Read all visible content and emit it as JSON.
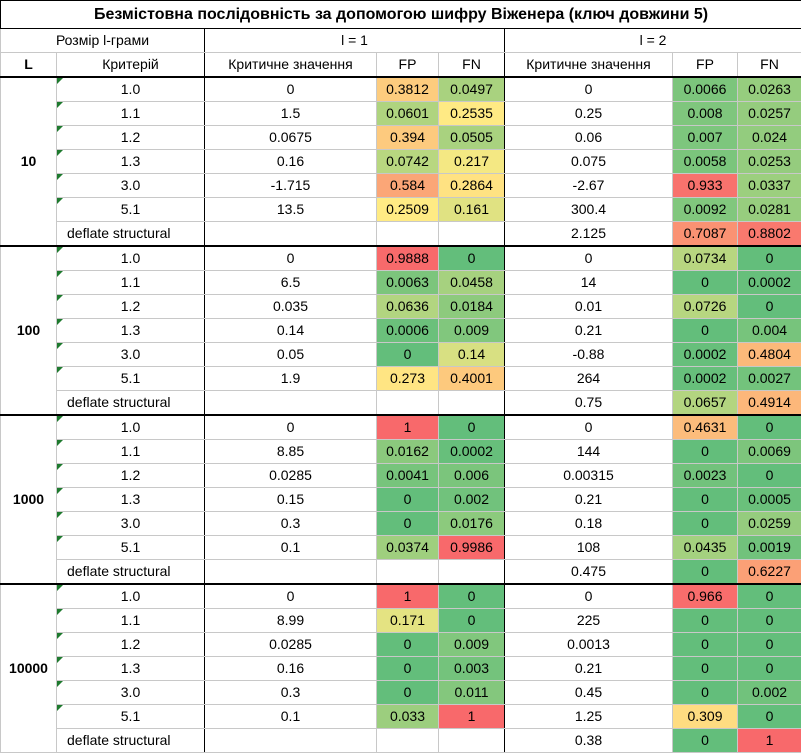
{
  "title": "Безмістовна послідовність за допомогою шифру Віженера (ключ довжини 5)",
  "header1": {
    "ngram_label": "Розмір l-грами",
    "l1": "l = 1",
    "l2": "l = 2"
  },
  "header2": {
    "L": "L",
    "criterion": "Критерій",
    "crit_value": "Критичне значення",
    "fp": "FP",
    "fn": "FN"
  },
  "groups": [
    {
      "L": "10",
      "rows": [
        {
          "crit": "1.0",
          "l1": {
            "cv": "0",
            "fp": "0.3812",
            "fn": "0.0497"
          },
          "l2": {
            "cv": "0",
            "fp": "0.0066",
            "fn": "0.0263"
          }
        },
        {
          "crit": "1.1",
          "l1": {
            "cv": "1.5",
            "fp": "0.0601",
            "fn": "0.2535"
          },
          "l2": {
            "cv": "0.25",
            "fp": "0.008",
            "fn": "0.0257"
          }
        },
        {
          "crit": "1.2",
          "l1": {
            "cv": "0.0675",
            "fp": "0.394",
            "fn": "0.0505"
          },
          "l2": {
            "cv": "0.06",
            "fp": "0.007",
            "fn": "0.024"
          }
        },
        {
          "crit": "1.3",
          "l1": {
            "cv": "0.16",
            "fp": "0.0742",
            "fn": "0.217"
          },
          "l2": {
            "cv": "0.075",
            "fp": "0.0058",
            "fn": "0.0253"
          }
        },
        {
          "crit": "3.0",
          "l1": {
            "cv": "-1.715",
            "fp": "0.584",
            "fn": "0.2864"
          },
          "l2": {
            "cv": "-2.67",
            "fp": "0.933",
            "fn": "0.0337"
          }
        },
        {
          "crit": "5.1",
          "l1": {
            "cv": "13.5",
            "fp": "0.2509",
            "fn": "0.161"
          },
          "l2": {
            "cv": "300.4",
            "fp": "0.0092",
            "fn": "0.0281"
          }
        },
        {
          "crit": "deflate structural",
          "l1": {
            "cv": "",
            "fp": "",
            "fn": ""
          },
          "l2": {
            "cv": "2.125",
            "fp": "0.7087",
            "fn": "0.8802"
          }
        }
      ]
    },
    {
      "L": "100",
      "rows": [
        {
          "crit": "1.0",
          "l1": {
            "cv": "0",
            "fp": "0.9888",
            "fn": "0"
          },
          "l2": {
            "cv": "0",
            "fp": "0.0734",
            "fn": "0"
          }
        },
        {
          "crit": "1.1",
          "l1": {
            "cv": "6.5",
            "fp": "0.0063",
            "fn": "0.0458"
          },
          "l2": {
            "cv": "14",
            "fp": "0",
            "fn": "0.0002"
          }
        },
        {
          "crit": "1.2",
          "l1": {
            "cv": "0.035",
            "fp": "0.0636",
            "fn": "0.0184"
          },
          "l2": {
            "cv": "0.01",
            "fp": "0.0726",
            "fn": "0"
          }
        },
        {
          "crit": "1.3",
          "l1": {
            "cv": "0.14",
            "fp": "0.0006",
            "fn": "0.009"
          },
          "l2": {
            "cv": "0.21",
            "fp": "0",
            "fn": "0.004"
          }
        },
        {
          "crit": "3.0",
          "l1": {
            "cv": "0.05",
            "fp": "0",
            "fn": "0.14"
          },
          "l2": {
            "cv": "-0.88",
            "fp": "0.0002",
            "fn": "0.4804"
          }
        },
        {
          "crit": "5.1",
          "l1": {
            "cv": "1.9",
            "fp": "0.273",
            "fn": "0.4001"
          },
          "l2": {
            "cv": "264",
            "fp": "0.0002",
            "fn": "0.0027"
          }
        },
        {
          "crit": "deflate structural",
          "l1": {
            "cv": "",
            "fp": "",
            "fn": ""
          },
          "l2": {
            "cv": "0.75",
            "fp": "0.0657",
            "fn": "0.4914"
          }
        }
      ]
    },
    {
      "L": "1000",
      "rows": [
        {
          "crit": "1.0",
          "l1": {
            "cv": "0",
            "fp": "1",
            "fn": "0"
          },
          "l2": {
            "cv": "0",
            "fp": "0.4631",
            "fn": "0"
          }
        },
        {
          "crit": "1.1",
          "l1": {
            "cv": "8.85",
            "fp": "0.0162",
            "fn": "0.0002"
          },
          "l2": {
            "cv": "144",
            "fp": "0",
            "fn": "0.0069"
          }
        },
        {
          "crit": "1.2",
          "l1": {
            "cv": "0.0285",
            "fp": "0.0041",
            "fn": "0.006"
          },
          "l2": {
            "cv": "0.00315",
            "fp": "0.0023",
            "fn": "0"
          }
        },
        {
          "crit": "1.3",
          "l1": {
            "cv": "0.15",
            "fp": "0",
            "fn": "0.002"
          },
          "l2": {
            "cv": "0.21",
            "fp": "0",
            "fn": "0.0005"
          }
        },
        {
          "crit": "3.0",
          "l1": {
            "cv": "0.3",
            "fp": "0",
            "fn": "0.0176"
          },
          "l2": {
            "cv": "0.18",
            "fp": "0",
            "fn": "0.0259"
          }
        },
        {
          "crit": "5.1",
          "l1": {
            "cv": "0.1",
            "fp": "0.0374",
            "fn": "0.9986"
          },
          "l2": {
            "cv": "108",
            "fp": "0.0435",
            "fn": "0.0019"
          }
        },
        {
          "crit": "deflate structural",
          "l1": {
            "cv": "",
            "fp": "",
            "fn": ""
          },
          "l2": {
            "cv": "0.475",
            "fp": "0",
            "fn": "0.6227"
          }
        }
      ]
    },
    {
      "L": "10000",
      "rows": [
        {
          "crit": "1.0",
          "l1": {
            "cv": "0",
            "fp": "1",
            "fn": "0"
          },
          "l2": {
            "cv": "0",
            "fp": "0.966",
            "fn": "0"
          }
        },
        {
          "crit": "1.1",
          "l1": {
            "cv": "8.99",
            "fp": "0.171",
            "fn": "0"
          },
          "l2": {
            "cv": "225",
            "fp": "0",
            "fn": "0"
          }
        },
        {
          "crit": "1.2",
          "l1": {
            "cv": "0.0285",
            "fp": "0",
            "fn": "0.009"
          },
          "l2": {
            "cv": "0.0013",
            "fp": "0",
            "fn": "0"
          }
        },
        {
          "crit": "1.3",
          "l1": {
            "cv": "0.16",
            "fp": "0",
            "fn": "0.003"
          },
          "l2": {
            "cv": "0.21",
            "fp": "0",
            "fn": "0"
          }
        },
        {
          "crit": "3.0",
          "l1": {
            "cv": "0.3",
            "fp": "0",
            "fn": "0.011"
          },
          "l2": {
            "cv": "0.45",
            "fp": "0",
            "fn": "0.002"
          }
        },
        {
          "crit": "5.1",
          "l1": {
            "cv": "0.1",
            "fp": "0.033",
            "fn": "1"
          },
          "l2": {
            "cv": "1.25",
            "fp": "0.309",
            "fn": "0"
          }
        },
        {
          "crit": "deflate structural",
          "l1": {
            "cv": "",
            "fp": "",
            "fn": ""
          },
          "l2": {
            "cv": "0.38",
            "fp": "0",
            "fn": "1"
          }
        }
      ]
    }
  ],
  "scale_colors": {
    "low": "#63be7b",
    "mid": "#ffeb84",
    "high": "#f8696b"
  }
}
